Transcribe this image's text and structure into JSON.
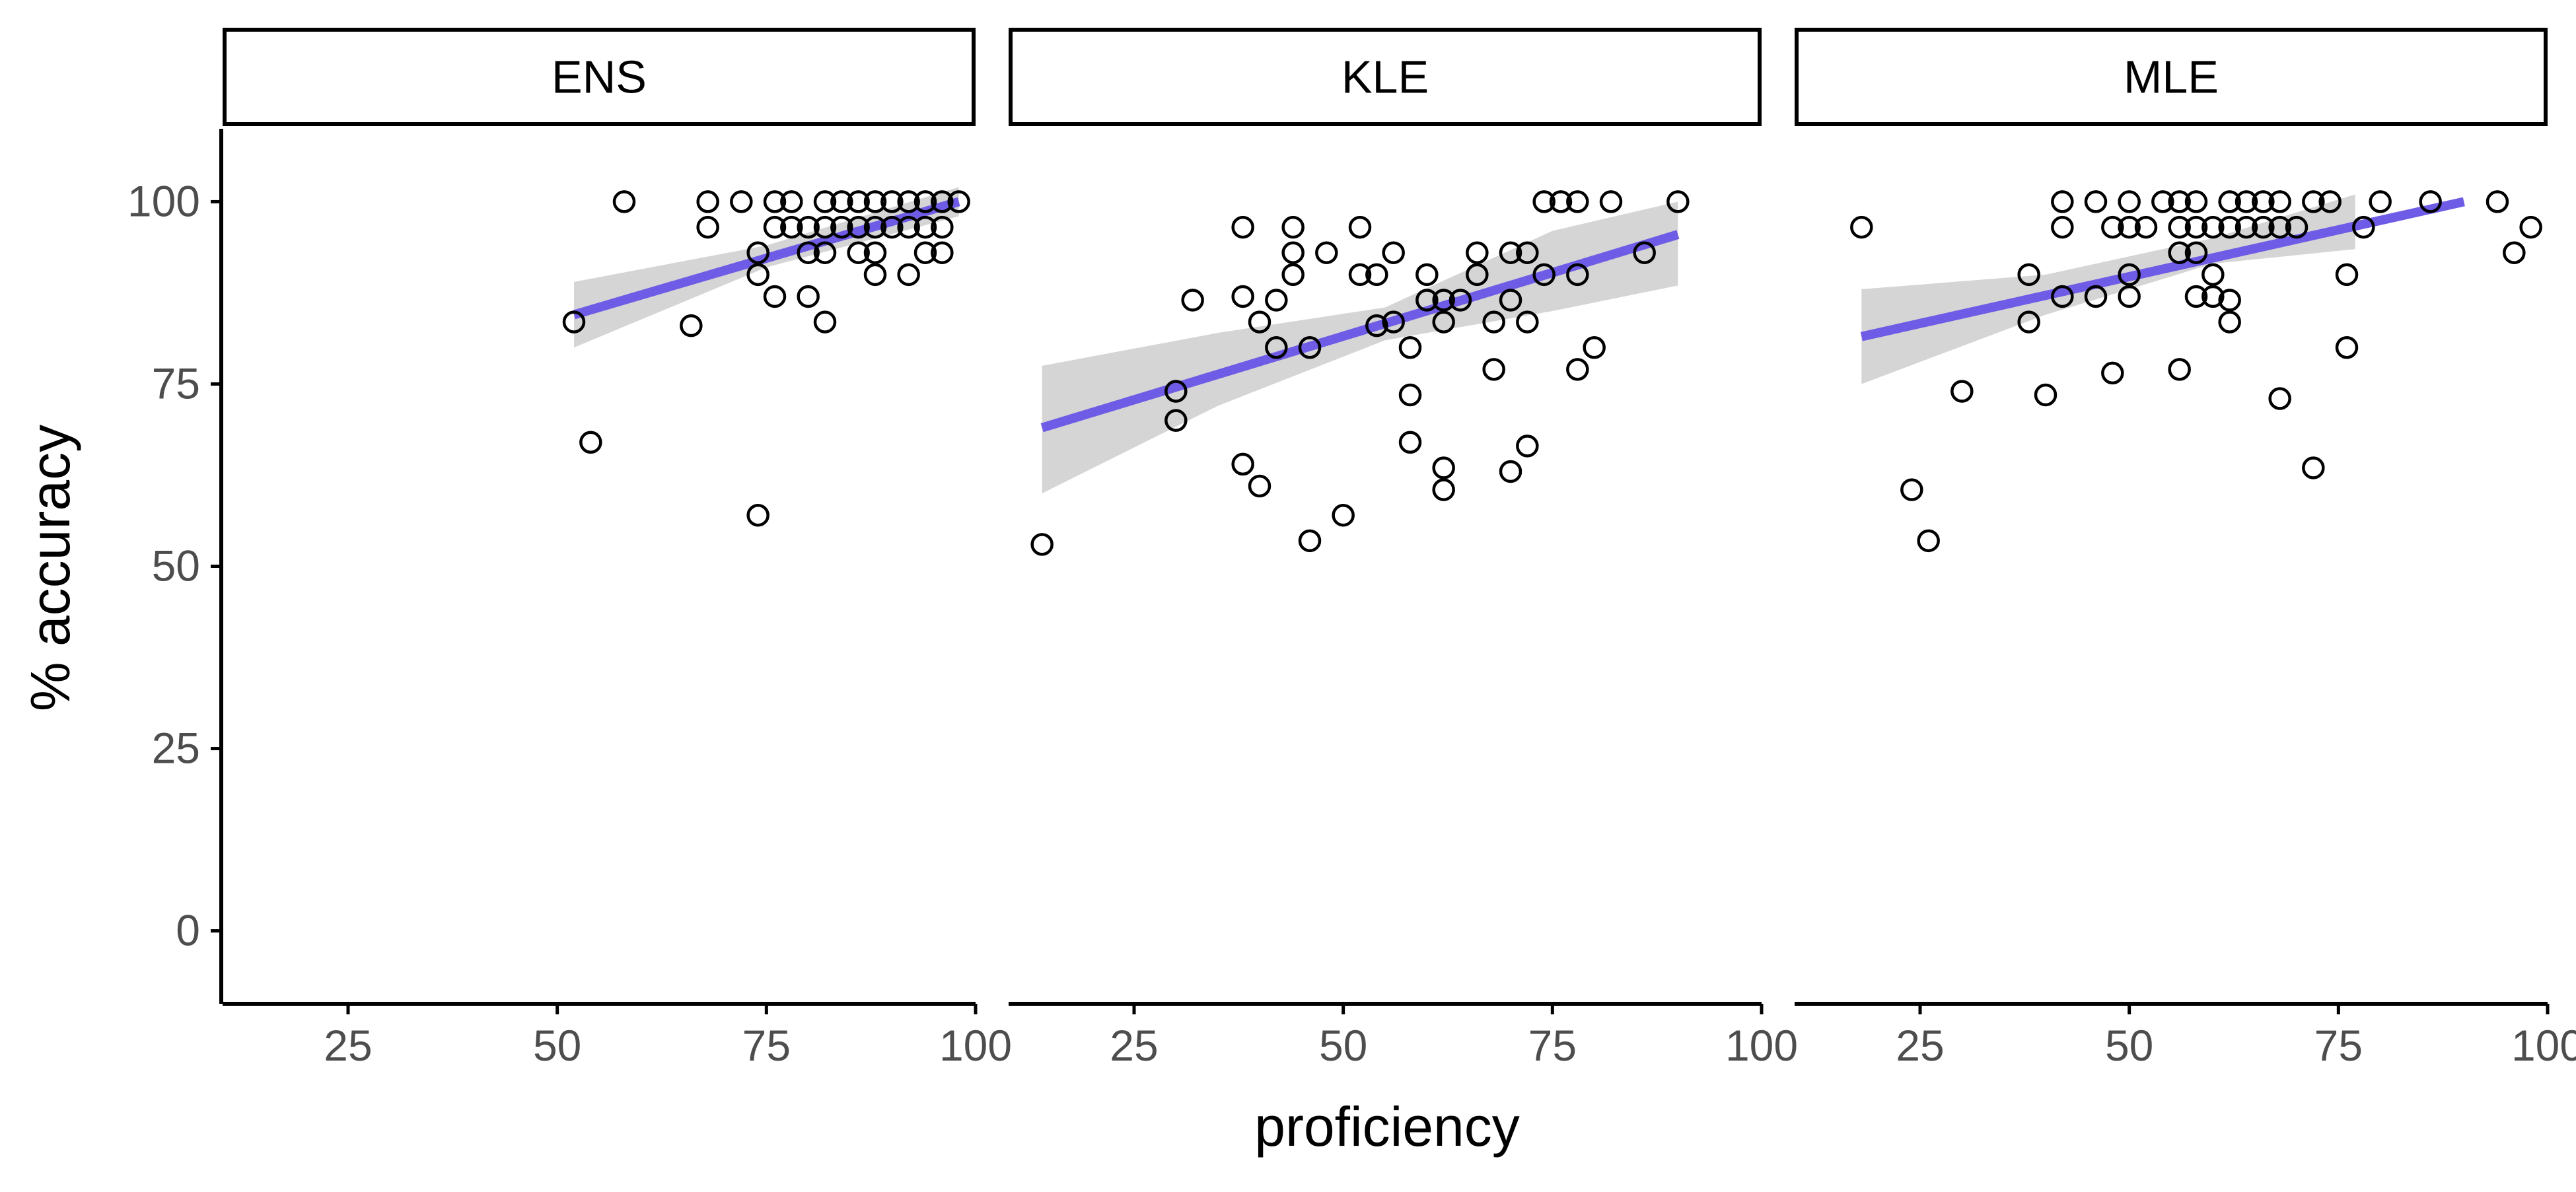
{
  "chart_data": {
    "type": "scatter",
    "xlabel": "proficiency",
    "ylabel": "% accuracy",
    "xlim": [
      10,
      100
    ],
    "ylim": [
      -10,
      110
    ],
    "x_ticks": [
      25,
      50,
      75,
      100
    ],
    "y_ticks": [
      0,
      25,
      50,
      75,
      100
    ],
    "grid": false,
    "colors": {
      "fit_line": "#6e5ce6",
      "ribbon": "#d3d3d3",
      "point_stroke": "#000000",
      "axis": "#000000",
      "tick_label": "#4d4d4d"
    },
    "panels": [
      {
        "name": "ENS",
        "fit": {
          "x0": 52,
          "y0": 84.5,
          "x1": 98,
          "y1": 100
        },
        "ci": [
          {
            "x": 52,
            "lo": 80,
            "hi": 89
          },
          {
            "x": 75,
            "lo": 91,
            "hi": 94
          },
          {
            "x": 98,
            "lo": 98,
            "hi": 102
          }
        ],
        "points": [
          [
            52,
            83.5
          ],
          [
            54,
            67
          ],
          [
            58,
            100
          ],
          [
            66,
            83
          ],
          [
            68,
            100
          ],
          [
            68,
            96.5
          ],
          [
            72,
            100
          ],
          [
            74,
            93
          ],
          [
            74,
            90
          ],
          [
            74,
            57
          ],
          [
            76,
            100
          ],
          [
            76,
            96.5
          ],
          [
            76,
            87
          ],
          [
            78,
            100
          ],
          [
            78,
            96.5
          ],
          [
            80,
            96.5
          ],
          [
            80,
            93
          ],
          [
            80,
            87
          ],
          [
            82,
            100
          ],
          [
            82,
            96.5
          ],
          [
            82,
            93
          ],
          [
            82,
            83.5
          ],
          [
            84,
            100
          ],
          [
            84,
            96.5
          ],
          [
            86,
            100
          ],
          [
            86,
            96.5
          ],
          [
            86,
            93
          ],
          [
            88,
            100
          ],
          [
            88,
            96.5
          ],
          [
            88,
            93
          ],
          [
            88,
            90
          ],
          [
            90,
            100
          ],
          [
            90,
            96.5
          ],
          [
            92,
            100
          ],
          [
            92,
            96.5
          ],
          [
            92,
            90
          ],
          [
            94,
            100
          ],
          [
            94,
            96.5
          ],
          [
            94,
            93
          ],
          [
            96,
            100
          ],
          [
            96,
            96.5
          ],
          [
            96,
            93
          ],
          [
            98,
            100
          ]
        ]
      },
      {
        "name": "KLE",
        "fit": {
          "x0": 14,
          "y0": 69,
          "x1": 90,
          "y1": 95.5
        },
        "ci": [
          {
            "x": 14,
            "lo": 60,
            "hi": 77.5
          },
          {
            "x": 35,
            "lo": 72,
            "hi": 82
          },
          {
            "x": 55,
            "lo": 81,
            "hi": 85.5
          },
          {
            "x": 75,
            "lo": 85,
            "hi": 96
          },
          {
            "x": 90,
            "lo": 88.5,
            "hi": 100
          }
        ],
        "points": [
          [
            14,
            53
          ],
          [
            30,
            74
          ],
          [
            30,
            70
          ],
          [
            32,
            86.5
          ],
          [
            38,
            96.5
          ],
          [
            38,
            87
          ],
          [
            38,
            64
          ],
          [
            40,
            83.5
          ],
          [
            40,
            61
          ],
          [
            42,
            86.5
          ],
          [
            42,
            80
          ],
          [
            44,
            96.5
          ],
          [
            44,
            93
          ],
          [
            44,
            90
          ],
          [
            46,
            80
          ],
          [
            46,
            53.5
          ],
          [
            48,
            93
          ],
          [
            50,
            57
          ],
          [
            52,
            96.5
          ],
          [
            52,
            90
          ],
          [
            54,
            90
          ],
          [
            54,
            83
          ],
          [
            56,
            93
          ],
          [
            56,
            83.5
          ],
          [
            58,
            80
          ],
          [
            58,
            73.5
          ],
          [
            58,
            67
          ],
          [
            60,
            90
          ],
          [
            60,
            86.5
          ],
          [
            62,
            86.5
          ],
          [
            62,
            83.5
          ],
          [
            62,
            63.5
          ],
          [
            62,
            60.5
          ],
          [
            64,
            86.5
          ],
          [
            66,
            93
          ],
          [
            66,
            90
          ],
          [
            68,
            83.5
          ],
          [
            68,
            77
          ],
          [
            70,
            93
          ],
          [
            70,
            86.5
          ],
          [
            70,
            63
          ],
          [
            72,
            93
          ],
          [
            72,
            83.5
          ],
          [
            72,
            66.5
          ],
          [
            74,
            100
          ],
          [
            74,
            90
          ],
          [
            76,
            100
          ],
          [
            78,
            100
          ],
          [
            78,
            90
          ],
          [
            78,
            77
          ],
          [
            80,
            80
          ],
          [
            82,
            100
          ],
          [
            86,
            93
          ],
          [
            90,
            100
          ]
        ]
      },
      {
        "name": "MLE",
        "fit": {
          "x0": 18,
          "y0": 81.5,
          "x1": 90,
          "y1": 100
        },
        "ci": [
          {
            "x": 18,
            "lo": 75,
            "hi": 88
          },
          {
            "x": 40,
            "lo": 84.5,
            "hi": 90
          },
          {
            "x": 60,
            "lo": 91.5,
            "hi": 95
          },
          {
            "x": 77,
            "lo": 93.5,
            "hi": 101
          }
        ],
        "points": [
          [
            18,
            96.5
          ],
          [
            24,
            60.5
          ],
          [
            26,
            53.5
          ],
          [
            30,
            74
          ],
          [
            38,
            90
          ],
          [
            38,
            83.5
          ],
          [
            40,
            73.5
          ],
          [
            42,
            100
          ],
          [
            42,
            96.5
          ],
          [
            42,
            87
          ],
          [
            46,
            100
          ],
          [
            46,
            87
          ],
          [
            48,
            96.5
          ],
          [
            48,
            76.5
          ],
          [
            50,
            100
          ],
          [
            50,
            96.5
          ],
          [
            50,
            90
          ],
          [
            50,
            87
          ],
          [
            52,
            96.5
          ],
          [
            54,
            100
          ],
          [
            56,
            100
          ],
          [
            56,
            96.5
          ],
          [
            56,
            93
          ],
          [
            56,
            77
          ],
          [
            58,
            100
          ],
          [
            58,
            96.5
          ],
          [
            58,
            93
          ],
          [
            58,
            87
          ],
          [
            60,
            96.5
          ],
          [
            60,
            90
          ],
          [
            60,
            87
          ],
          [
            62,
            100
          ],
          [
            62,
            96.5
          ],
          [
            62,
            86.5
          ],
          [
            62,
            83.5
          ],
          [
            64,
            100
          ],
          [
            64,
            96.5
          ],
          [
            66,
            100
          ],
          [
            66,
            96.5
          ],
          [
            68,
            100
          ],
          [
            68,
            96.5
          ],
          [
            68,
            73
          ],
          [
            70,
            96.5
          ],
          [
            72,
            100
          ],
          [
            72,
            63.5
          ],
          [
            74,
            100
          ],
          [
            76,
            90
          ],
          [
            76,
            80
          ],
          [
            78,
            96.5
          ],
          [
            80,
            100
          ],
          [
            86,
            100
          ],
          [
            94,
            100
          ],
          [
            96,
            93
          ],
          [
            98,
            96.5
          ]
        ]
      }
    ]
  }
}
